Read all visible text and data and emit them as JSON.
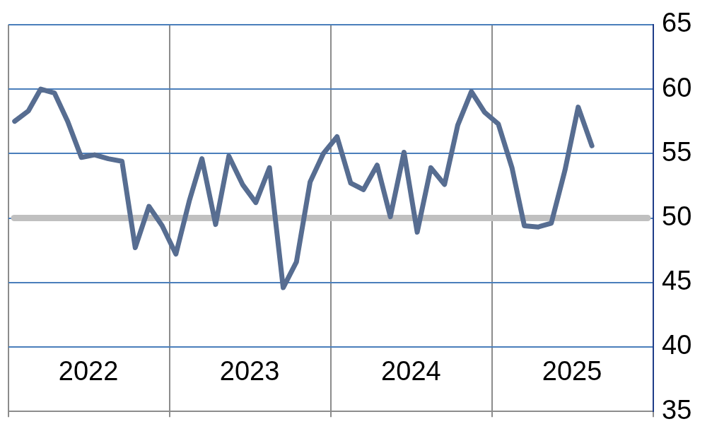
{
  "chart_data": {
    "type": "line",
    "x": [
      "2022-01-15",
      "2022-02-15",
      "2022-03-15",
      "2022-04-15",
      "2022-05-15",
      "2022-06-15",
      "2022-07-15",
      "2022-08-15",
      "2022-09-15",
      "2022-10-15",
      "2022-11-15",
      "2022-12-15",
      "2023-01-15",
      "2023-02-15",
      "2023-03-15",
      "2023-04-15",
      "2023-05-15",
      "2023-06-15",
      "2023-07-15",
      "2023-08-15",
      "2023-09-15",
      "2023-10-15",
      "2023-11-15",
      "2023-12-15",
      "2024-01-15",
      "2024-02-15",
      "2024-03-15",
      "2024-04-15",
      "2024-05-15",
      "2024-06-15",
      "2024-07-15",
      "2024-08-15",
      "2024-09-15",
      "2024-10-15",
      "2024-11-15",
      "2024-12-15",
      "2025-01-15",
      "2025-02-15",
      "2025-03-15",
      "2025-04-15",
      "2025-05-15",
      "2025-06-15",
      "2025-07-15",
      "2025-08-15"
    ],
    "series": [
      {
        "color": "#576d91",
        "values": [
          57.5,
          58.3,
          60.0,
          59.7,
          57.5,
          54.7,
          54.9,
          54.6,
          54.4,
          47.7,
          50.9,
          49.4,
          47.2,
          51.4,
          54.6,
          49.5,
          54.8,
          52.6,
          51.2,
          53.9,
          44.6,
          46.6,
          52.8,
          55.0,
          56.3,
          52.7,
          52.2,
          54.1,
          50.1,
          55.1,
          48.9,
          53.9,
          52.6,
          57.2,
          59.8,
          58.2,
          57.3,
          53.9,
          49.4,
          49.3,
          49.6,
          53.7,
          58.6,
          55.6
        ]
      }
    ],
    "xlim": [
      "2022-01-01",
      "2026-01-01"
    ],
    "xticks": [
      {
        "value": "2022-01-01",
        "label": null
      },
      {
        "value": "2022-07-01",
        "label": "2022"
      },
      {
        "value": "2023-01-01",
        "label": null
      },
      {
        "value": "2023-07-01",
        "label": "2023"
      },
      {
        "value": "2024-01-01",
        "label": null
      },
      {
        "value": "2024-07-01",
        "label": "2024"
      },
      {
        "value": "2025-01-01",
        "label": null
      },
      {
        "value": "2025-07-01",
        "label": "2025"
      },
      {
        "value": "2026-01-01",
        "label": null
      }
    ],
    "ylim": [
      35,
      65
    ],
    "yticks": [
      35,
      40,
      45,
      50,
      55,
      60,
      65
    ],
    "ref_lines": [
      {
        "axis": "y",
        "value": 50,
        "color": "#c0c0c0"
      }
    ],
    "grid": true,
    "line_style": "solid",
    "marker": "none",
    "legend": false
  }
}
